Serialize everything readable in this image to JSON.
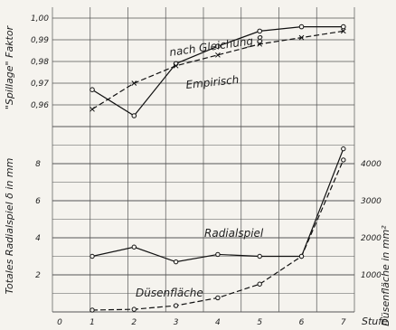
{
  "chart_data": [
    {
      "type": "line",
      "ylabel": "\"Spillage\" Faktor",
      "x": [
        1,
        2,
        3,
        4,
        5,
        6,
        7
      ],
      "ylim": [
        0.95,
        1.005
      ],
      "yticks": [
        "1,00",
        "0,99",
        "0,98",
        "0,97",
        "0,96"
      ],
      "grid": true,
      "series": [
        {
          "name": "nach Gleichung 8",
          "style": "solid",
          "marker": "circle",
          "values": [
            0.967,
            0.955,
            0.979,
            0.987,
            0.994,
            0.996,
            0.996
          ]
        },
        {
          "name": "Empirisch",
          "style": "dashed",
          "marker": "cross",
          "values": [
            0.958,
            0.97,
            0.978,
            0.983,
            0.988,
            0.991,
            0.994
          ]
        }
      ]
    },
    {
      "type": "line",
      "xlabel": "Stufe",
      "ylabel_left": "Totales Radialspiel δ in mm",
      "ylabel_right": "Düsenfläche in mm²",
      "x": [
        1,
        2,
        3,
        4,
        5,
        6,
        7
      ],
      "xticks": [
        "0",
        "1",
        "2",
        "3",
        "4",
        "5",
        "6",
        "7"
      ],
      "ylim_left": [
        0,
        10
      ],
      "yticks_left": [
        "2",
        "4",
        "6",
        "8"
      ],
      "ylim_right": [
        0,
        5000
      ],
      "yticks_right": [
        "1000",
        "2000",
        "3000",
        "4000"
      ],
      "grid": true,
      "series": [
        {
          "name": "Radialspiel",
          "style": "solid",
          "marker": "circle",
          "axis": "left",
          "values": [
            3.0,
            3.5,
            2.7,
            3.1,
            3.0,
            3.0,
            8.8
          ]
        },
        {
          "name": "Düsenfläche",
          "style": "dashed",
          "marker": "circle",
          "axis": "right",
          "values": [
            50,
            70,
            170,
            380,
            750,
            1500,
            4100
          ]
        }
      ]
    }
  ]
}
